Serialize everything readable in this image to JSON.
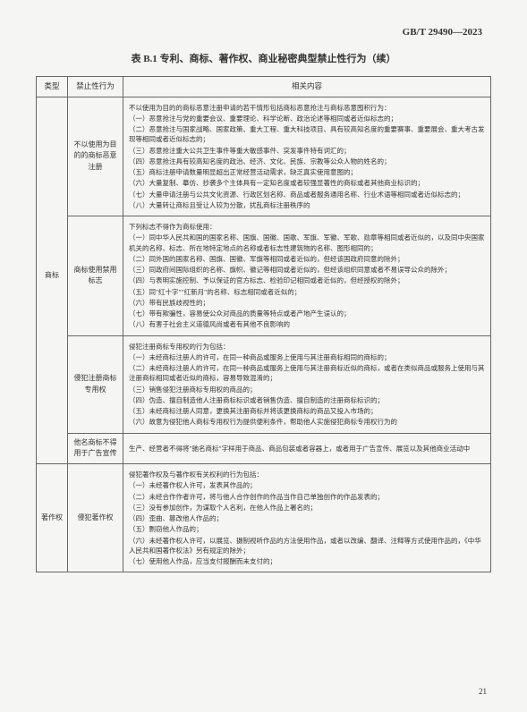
{
  "header_code": "GB/T 29490—2023",
  "table_title": "表 B.1  专利、商标、著作权、商业秘密典型禁止性行为（续）",
  "page_number": "21",
  "headers": {
    "type": "类型",
    "behavior": "禁止性行为",
    "content": "相关内容"
  },
  "rows": [
    {
      "type": "",
      "behavior": "不以使用为目的的商标恶意注册",
      "content_lines": [
        "不以使用为目的的商标恶意注册申请的若干情形包括商标恶意抢注与商标恶意囤积行为：",
        "（一）恶意抢注与党的重要会议、重要理论、科学论断、政治论述等相同或者近似标志的；",
        "（二）恶意抢注与国家战略、国家政策、重大工程、重大科技项目、具有较高知名度的重要赛事、重要展会、重大考古发现等相同或者近似标志的；",
        "（三）恶意抢注重大公共卫生事件等重大敏感事件、突发事件特有词汇的；",
        "（四）恶意抢注具有较高知名度的政治、经济、文化、民族、宗教等公众人物的姓名的；",
        "（五）商标注册申请数量明显超出正常经营活动需求，缺乏真实使用意图的；",
        "（六）大量复制、摹仿、抄袭多个主体具有一定知名度或者较强显著性的商标或者其他商业标识的；",
        "（七）大量申请注册与公共文化资源、行政区划名称、商品或者服务通用名称、行业术语等相同或者近似标志的；",
        "（八）大量转让商标且受让人较为分散，扰乱商标注册秩序的"
      ]
    },
    {
      "type": "商标",
      "behavior": "商标使用禁用标志",
      "content_lines": [
        "下列标志不得作为商标使用：",
        "（一）同中华人民共和国的国家名称、国旗、国徽、国歌、军旗、军徽、军歌、勋章等相同或者近似的，以及同中央国家机关的名称、标志、所在地特定地点的名称或者标志性建筑物的名称、图形相同的；",
        "（二）同外国的国家名称、国旗、国徽、军旗等相同或者近似的，但经该国政府同意的除外；",
        "（三）同政府间国际组织的名称、旗帜、徽记等相同或者近似的，但经该组织同意或者不易误导公众的除外；",
        "（四）与表明实施控制、予以保证的官方标志、检验印记相同或者近似的，但经授权的除外；",
        "（五）同\"红十字\"\"红新月\"的名称、标志相同或者近似的；",
        "（六）带有民族歧视性的；",
        "（七）带有欺骗性，容易使公众对商品的质量等特点或者产地产生误认的；",
        "（八）有害于社会主义道德风尚或者有其他不良影响的"
      ]
    },
    {
      "type": "",
      "behavior": "侵犯注册商标专用权",
      "content_lines": [
        "侵犯注册商标专用权的行为包括：",
        "（一）未经商标注册人的许可，在同一种商品或服务上使用与其注册商标相同的商标的；",
        "（二）未经商标注册人的许可，在同一种商品或服务上使用与其注册商标近似的商标，或者在类似商品或服务上使用与其注册商标相同或者近似的商标，容易导致混淆的；",
        "（三）销售侵犯注册商标专用权的商品的；",
        "（四）伪造、擅自制造他人注册商标标识或者销售伪造、擅自制造的注册商标标识的；",
        "（五）未经商标注册人同意，更换其注册商标并将该更换商标的商品又投入市场的；",
        "（六）故意为侵犯他人商标专用权行为提供便利条件，帮助他人实施侵犯商标专用权行为的"
      ]
    },
    {
      "type": "",
      "behavior": "他名商标不得用于广告宣传",
      "content_lines": [
        "生产、经营者不得将\"驰名商标\"字样用于商品、商品包装或者容器上，或者用于广告宣传、展览以及其他商业活动中"
      ]
    },
    {
      "type": "著作权",
      "behavior": "侵犯著作权",
      "content_lines": [
        "侵犯著作权及与著作权有关权利的行为包括：",
        "（一）未经著作权人许可，发表其作品的；",
        "（二）未经合作作者许可，将与他人合作创作的作品当作自己单独创作的作品发表的；",
        "（三）没有参加创作，为谋取个人名利，在他人作品上署名的；",
        "（四）歪曲、篡改他人作品的；",
        "（五）剽窃他人作品的；",
        "（六）未经著作权人许可，以展览、摄制视听作品的方法使用作品，或者以改编、翻译、注释等方式使用作品的，《中华人民共和国著作权法》另有规定的除外；",
        "（七）使用他人作品，应当支付报酬而未支付的；"
      ]
    }
  ]
}
